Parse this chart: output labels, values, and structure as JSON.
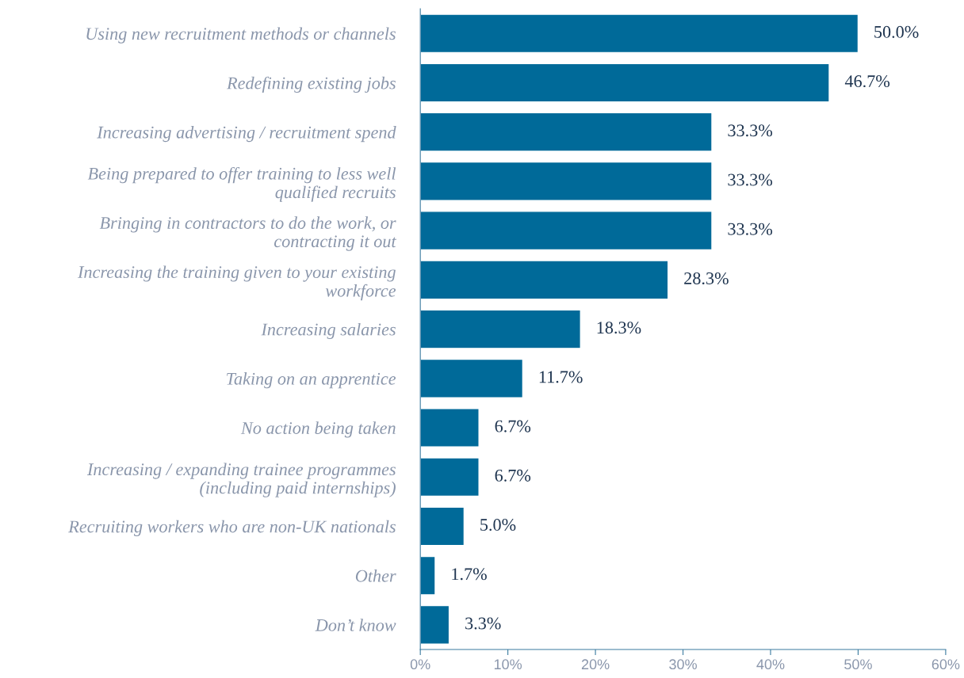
{
  "chart_data": {
    "type": "bar",
    "orientation": "horizontal",
    "categories": [
      "Using new recruitment methods or channels",
      "Redefining existing jobs",
      "Increasing advertising / recruitment spend",
      "Being prepared to offer training to less well\nqualified recruits",
      "Bringing in contractors to do the work, or\ncontracting it out",
      "Increasing the training given to your existing\nworkforce",
      "Increasing salaries",
      "Taking on an apprentice",
      "No action being taken",
      "Increasing / expanding trainee programmes\n(including paid internships)",
      "Recruiting workers who are non-UK nationals",
      "Other",
      "Don’t know"
    ],
    "values": [
      50.0,
      46.7,
      33.3,
      33.3,
      33.3,
      28.3,
      18.3,
      11.7,
      6.7,
      6.7,
      5.0,
      1.7,
      3.3
    ],
    "value_labels": [
      "50.0%",
      "46.7%",
      "33.3%",
      "33.3%",
      "33.3%",
      "28.3%",
      "18.3%",
      "11.7%",
      "6.7%",
      "6.7%",
      "5.0%",
      "1.7%",
      "3.3%"
    ],
    "color": "#006a99",
    "xlim": [
      0,
      60
    ],
    "xticks": [
      {
        "value": 0,
        "label": "0%"
      },
      {
        "value": 10,
        "label": "10%"
      },
      {
        "value": 20,
        "label": "20%"
      },
      {
        "value": 30,
        "label": "30%"
      },
      {
        "value": 40,
        "label": "40%"
      },
      {
        "value": 50,
        "label": "50%"
      },
      {
        "value": 60,
        "label": "60%"
      }
    ],
    "grid": false,
    "legend": false
  }
}
